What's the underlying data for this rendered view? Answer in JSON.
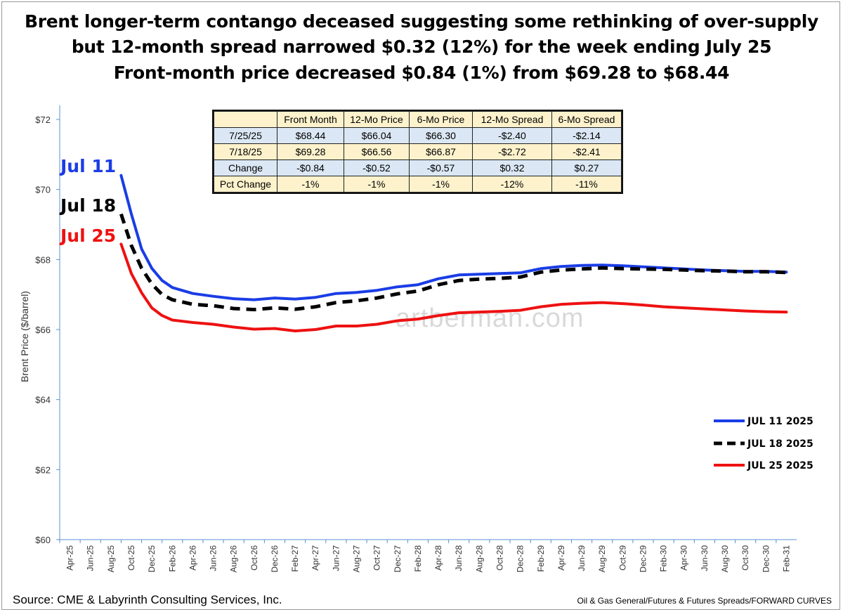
{
  "title": {
    "line1": "Brent longer-term contango deceased suggesting some rethinking of over-supply",
    "line2": "but 12-month spread narrowed $0.32 (12%) for the week ending July 25",
    "line3": "Front-month price decreased $0.84 (1%) from $69.28 to $68.44"
  },
  "table": {
    "headers": [
      "",
      "Front Month",
      "12-Mo Price",
      "6-Mo Price",
      "12-Mo Spread",
      "6-Mo Spread"
    ],
    "rows": [
      [
        "7/25/25",
        "$68.44",
        "$66.04",
        "$66.30",
        "-$2.40",
        "-$2.14"
      ],
      [
        "7/18/25",
        "$69.28",
        "$66.56",
        "$66.87",
        "-$2.72",
        "-$2.41"
      ],
      [
        "Change",
        "-$0.84",
        "-$0.52",
        "-$0.57",
        "$0.32",
        "$0.27"
      ],
      [
        "Pct Change",
        "-1%",
        "-1%",
        "-1%",
        "-12%",
        "-11%"
      ]
    ]
  },
  "watermark": "artberman.com",
  "footer": {
    "source": "Source: CME & Labyrinth Consulting Services, Inc.",
    "path": "Oil & Gas General/Futures & Futures Spreads/FORWARD CURVES"
  },
  "chart_data": {
    "type": "line",
    "ylabel": "Brent Price ($/barrel)",
    "ylim": [
      60,
      72
    ],
    "yticks": [
      "$60",
      "$62",
      "$64",
      "$66",
      "$68",
      "$70",
      "$72"
    ],
    "xticks": [
      "Apr-25",
      "Jun-25",
      "Aug-25",
      "Oct-25",
      "Dec-25",
      "Feb-26",
      "Apr-26",
      "Jun-26",
      "Aug-26",
      "Oct-26",
      "Dec-26",
      "Feb-27",
      "Apr-27",
      "Jun-27",
      "Aug-27",
      "Oct-27",
      "Dec-27",
      "Feb-28",
      "Apr-28",
      "Jun-28",
      "Aug-28",
      "Oct-28",
      "Dec-28",
      "Feb-29",
      "Apr-29",
      "Jun-29",
      "Aug-29",
      "Oct-29",
      "Dec-29",
      "Feb-30",
      "Apr-30",
      "Jun-30",
      "Aug-30",
      "Oct-30",
      "Dec-30",
      "Feb-31"
    ],
    "legend_position": "bottom-right",
    "series": [
      {
        "name": "JUL 11 2025",
        "label": "Jul 11",
        "color": "#1a3de6",
        "style": "solid",
        "points": [
          [
            "Sep-25",
            70.4
          ],
          [
            "Oct-25",
            69.3
          ],
          [
            "Nov-25",
            68.3
          ],
          [
            "Dec-25",
            67.75
          ],
          [
            "Jan-26",
            67.4
          ],
          [
            "Feb-26",
            67.2
          ],
          [
            "Apr-26",
            67.03
          ],
          [
            "Jun-26",
            66.95
          ],
          [
            "Aug-26",
            66.88
          ],
          [
            "Oct-26",
            66.85
          ],
          [
            "Dec-26",
            66.9
          ],
          [
            "Feb-27",
            66.87
          ],
          [
            "Apr-27",
            66.92
          ],
          [
            "Jun-27",
            67.03
          ],
          [
            "Aug-27",
            67.06
          ],
          [
            "Oct-27",
            67.12
          ],
          [
            "Dec-27",
            67.22
          ],
          [
            "Feb-28",
            67.28
          ],
          [
            "Apr-28",
            67.45
          ],
          [
            "Jun-28",
            67.56
          ],
          [
            "Aug-28",
            67.58
          ],
          [
            "Oct-28",
            67.6
          ],
          [
            "Dec-28",
            67.62
          ],
          [
            "Feb-29",
            67.74
          ],
          [
            "Apr-29",
            67.8
          ],
          [
            "Jun-29",
            67.83
          ],
          [
            "Aug-29",
            67.84
          ],
          [
            "Oct-29",
            67.82
          ],
          [
            "Dec-29",
            67.79
          ],
          [
            "Feb-30",
            67.76
          ],
          [
            "Apr-30",
            67.73
          ],
          [
            "Jun-30",
            67.7
          ],
          [
            "Aug-30",
            67.68
          ],
          [
            "Oct-30",
            67.66
          ],
          [
            "Dec-30",
            67.66
          ],
          [
            "Feb-31",
            67.64
          ]
        ]
      },
      {
        "name": "JUL 18 2025",
        "label": "Jul 18",
        "color": "#000000",
        "style": "dashed",
        "points": [
          [
            "Sep-25",
            69.3
          ],
          [
            "Oct-25",
            68.4
          ],
          [
            "Nov-25",
            67.75
          ],
          [
            "Dec-25",
            67.3
          ],
          [
            "Jan-26",
            67.0
          ],
          [
            "Feb-26",
            66.85
          ],
          [
            "Apr-26",
            66.72
          ],
          [
            "Jun-26",
            66.68
          ],
          [
            "Aug-26",
            66.6
          ],
          [
            "Oct-26",
            66.57
          ],
          [
            "Dec-26",
            66.62
          ],
          [
            "Feb-27",
            66.58
          ],
          [
            "Apr-27",
            66.65
          ],
          [
            "Jun-27",
            66.77
          ],
          [
            "Aug-27",
            66.82
          ],
          [
            "Oct-27",
            66.9
          ],
          [
            "Dec-27",
            67.02
          ],
          [
            "Feb-28",
            67.1
          ],
          [
            "Apr-28",
            67.28
          ],
          [
            "Jun-28",
            67.4
          ],
          [
            "Aug-28",
            67.44
          ],
          [
            "Oct-28",
            67.46
          ],
          [
            "Dec-28",
            67.5
          ],
          [
            "Feb-29",
            67.64
          ],
          [
            "Apr-29",
            67.7
          ],
          [
            "Jun-29",
            67.73
          ],
          [
            "Aug-29",
            67.76
          ],
          [
            "Oct-29",
            67.74
          ],
          [
            "Dec-29",
            67.73
          ],
          [
            "Feb-30",
            67.72
          ],
          [
            "Apr-30",
            67.7
          ],
          [
            "Jun-30",
            67.68
          ],
          [
            "Aug-30",
            67.67
          ],
          [
            "Oct-30",
            67.65
          ],
          [
            "Dec-30",
            67.65
          ],
          [
            "Feb-31",
            67.63
          ]
        ]
      },
      {
        "name": "JUL 25 2025",
        "label": "Jul 25",
        "color": "#ee1111",
        "style": "solid",
        "points": [
          [
            "Sep-25",
            68.44
          ],
          [
            "Oct-25",
            67.6
          ],
          [
            "Nov-25",
            67.05
          ],
          [
            "Dec-25",
            66.62
          ],
          [
            "Jan-26",
            66.4
          ],
          [
            "Feb-26",
            66.27
          ],
          [
            "Apr-26",
            66.2
          ],
          [
            "Jun-26",
            66.15
          ],
          [
            "Aug-26",
            66.07
          ],
          [
            "Oct-26",
            66.01
          ],
          [
            "Dec-26",
            66.03
          ],
          [
            "Feb-27",
            65.96
          ],
          [
            "Apr-27",
            66.0
          ],
          [
            "Jun-27",
            66.1
          ],
          [
            "Aug-27",
            66.1
          ],
          [
            "Oct-27",
            66.15
          ],
          [
            "Dec-27",
            66.25
          ],
          [
            "Feb-28",
            66.3
          ],
          [
            "Apr-28",
            66.4
          ],
          [
            "Jun-28",
            66.48
          ],
          [
            "Aug-28",
            66.5
          ],
          [
            "Oct-28",
            66.52
          ],
          [
            "Dec-28",
            66.55
          ],
          [
            "Feb-29",
            66.65
          ],
          [
            "Apr-29",
            66.72
          ],
          [
            "Jun-29",
            66.75
          ],
          [
            "Aug-29",
            66.77
          ],
          [
            "Oct-29",
            66.74
          ],
          [
            "Dec-29",
            66.7
          ],
          [
            "Feb-30",
            66.65
          ],
          [
            "Apr-30",
            66.62
          ],
          [
            "Jun-30",
            66.59
          ],
          [
            "Aug-30",
            66.56
          ],
          [
            "Oct-30",
            66.53
          ],
          [
            "Dec-30",
            66.51
          ],
          [
            "Feb-31",
            66.5
          ]
        ]
      }
    ]
  }
}
